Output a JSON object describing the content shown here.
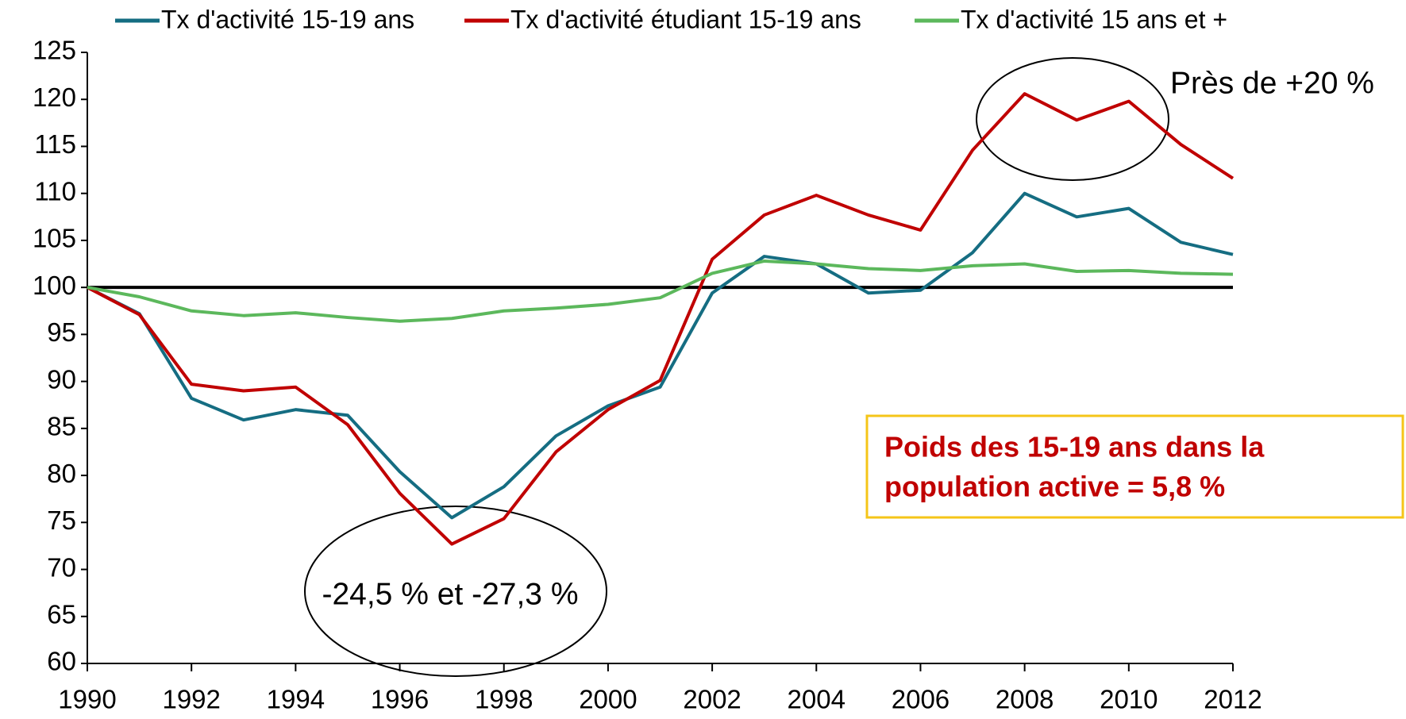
{
  "chart_data": {
    "type": "line",
    "x": [
      1990,
      1991,
      1992,
      1993,
      1994,
      1995,
      1996,
      1997,
      1998,
      1999,
      2000,
      2001,
      2002,
      2003,
      2004,
      2005,
      2006,
      2007,
      2008,
      2009,
      2010,
      2011,
      2012
    ],
    "series": [
      {
        "name": "Tx d'activité 15-19 ans",
        "color": "#156d82",
        "values": [
          100,
          97.2,
          88.2,
          85.9,
          87.0,
          86.4,
          80.4,
          75.5,
          78.8,
          84.2,
          87.4,
          89.4,
          99.4,
          103.3,
          102.5,
          99.4,
          99.7,
          103.7,
          110.0,
          107.5,
          108.4,
          104.8,
          103.5
        ]
      },
      {
        "name": "Tx d'activité étudiant 15-19 ans",
        "color": "#c00000",
        "values": [
          100,
          97.1,
          89.7,
          89.0,
          89.4,
          85.4,
          78.1,
          72.7,
          75.4,
          82.5,
          87.0,
          90.1,
          103.0,
          107.7,
          109.8,
          107.7,
          106.1,
          114.6,
          120.6,
          117.8,
          119.8,
          115.2,
          111.6
        ]
      },
      {
        "name": "Tx d'activité 15 ans et +",
        "color": "#5cb85c",
        "values": [
          100,
          99.0,
          97.5,
          97.0,
          97.3,
          96.8,
          96.4,
          96.7,
          97.5,
          97.8,
          98.2,
          98.9,
          101.5,
          102.8,
          102.5,
          102.0,
          101.8,
          102.3,
          102.5,
          101.7,
          101.8,
          101.5,
          101.4
        ]
      }
    ],
    "reference_line": 100,
    "xlim": [
      1990,
      2012
    ],
    "xticks": [
      1990,
      1992,
      1994,
      1996,
      1998,
      2000,
      2002,
      2004,
      2006,
      2008,
      2010,
      2012
    ],
    "ylim": [
      60,
      125
    ],
    "yticks": [
      60,
      65,
      70,
      75,
      80,
      85,
      90,
      95,
      100,
      105,
      110,
      115,
      120,
      125
    ],
    "grid": false,
    "legend": "top",
    "annotations": [
      "Près de +20 %",
      "-24,5 % et -27,3 %"
    ],
    "callout": [
      "Poids des 15-19 ans dans la",
      "population active  =  5,8 %"
    ]
  }
}
